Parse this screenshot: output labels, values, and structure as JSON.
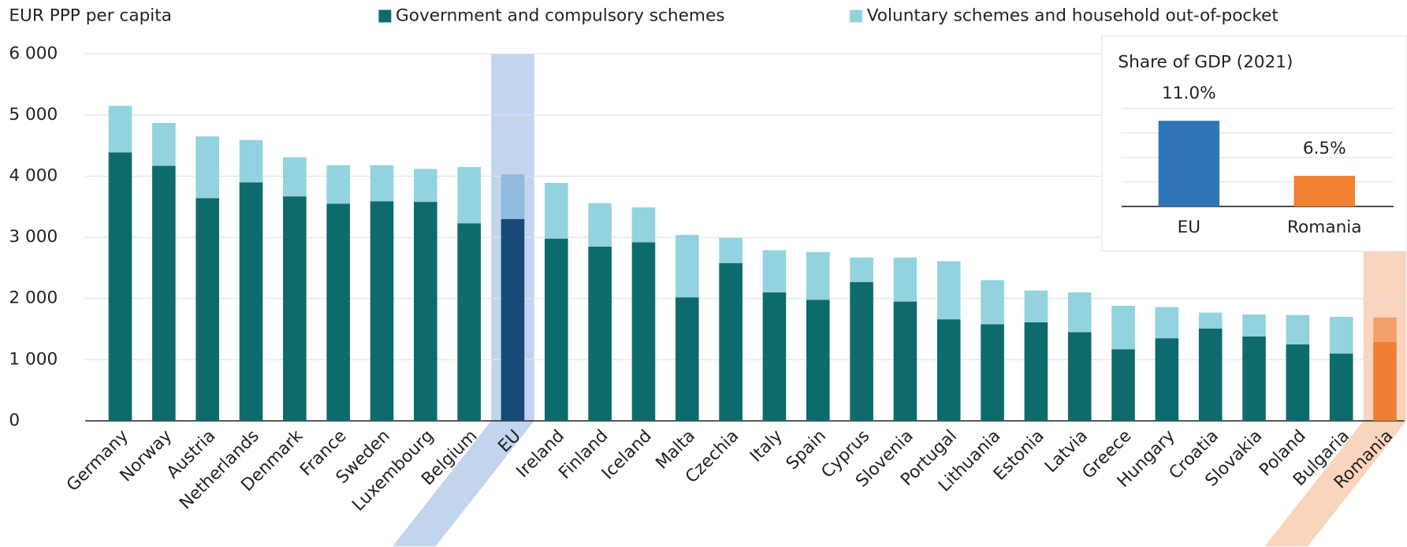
{
  "chart_data": [
    {
      "type": "bar",
      "stacked": true,
      "y_label": "EUR PPP per capita",
      "categories": [
        "Germany",
        "Norway",
        "Austria",
        "Netherlands",
        "Denmark",
        "France",
        "Sweden",
        "Luxembourg",
        "Belgium",
        "EU",
        "Ireland",
        "Finland",
        "Iceland",
        "Malta",
        "Czechia",
        "Italy",
        "Spain",
        "Cyprus",
        "Slovenia",
        "Portugal",
        "Lithuania",
        "Estonia",
        "Latvia",
        "Greece",
        "Hungary",
        "Croatia",
        "Slovakia",
        "Poland",
        "Bulgaria",
        "Romania"
      ],
      "series": [
        {
          "name": "Government and compulsory schemes",
          "color": "#0e6b6c",
          "values": [
            4390,
            4170,
            3640,
            3900,
            3670,
            3550,
            3590,
            3580,
            3230,
            3300,
            2980,
            2850,
            2920,
            2020,
            2580,
            2100,
            1980,
            2270,
            1950,
            1660,
            1580,
            1610,
            1450,
            1170,
            1350,
            1510,
            1380,
            1250,
            1100,
            1290
          ]
        },
        {
          "name": "Voluntary schemes and household out-of-pocket",
          "color": "#92d3df",
          "values": [
            760,
            700,
            1010,
            690,
            640,
            630,
            590,
            540,
            920,
            730,
            910,
            710,
            570,
            1020,
            410,
            690,
            780,
            400,
            720,
            950,
            720,
            520,
            650,
            710,
            510,
            260,
            360,
            480,
            600,
            400
          ]
        }
      ],
      "highlights": [
        {
          "index": 9,
          "band": "#c3d5ec",
          "colors": [
            "#164a78",
            "#92b9df"
          ]
        },
        {
          "index": 29,
          "band": "#f9d5bd",
          "colors": [
            "#ef7d33",
            "#f3a06b"
          ]
        }
      ],
      "ylim": [
        0,
        6000
      ],
      "yticks": [
        {
          "value": 0,
          "label": "0"
        },
        {
          "value": 1000,
          "label": "1 000"
        },
        {
          "value": 2000,
          "label": "2 000"
        },
        {
          "value": 3000,
          "label": "3 000"
        },
        {
          "value": 4000,
          "label": "4 000"
        },
        {
          "value": 5000,
          "label": "5 000"
        },
        {
          "value": 6000,
          "label": "6 000"
        }
      ],
      "grid": true
    },
    {
      "type": "bar",
      "title": "Share of GDP (2021)",
      "categories": [
        "EU",
        "Romania"
      ],
      "values": [
        11.0,
        6.5
      ],
      "value_labels": [
        "11.0%",
        "6.5%"
      ],
      "colors": [
        "#2f75b6",
        "#f28231"
      ],
      "ylim": [
        4,
        12
      ],
      "yticks": [
        4,
        6,
        8,
        10,
        12
      ],
      "tick_labels": false,
      "grid": true
    }
  ]
}
